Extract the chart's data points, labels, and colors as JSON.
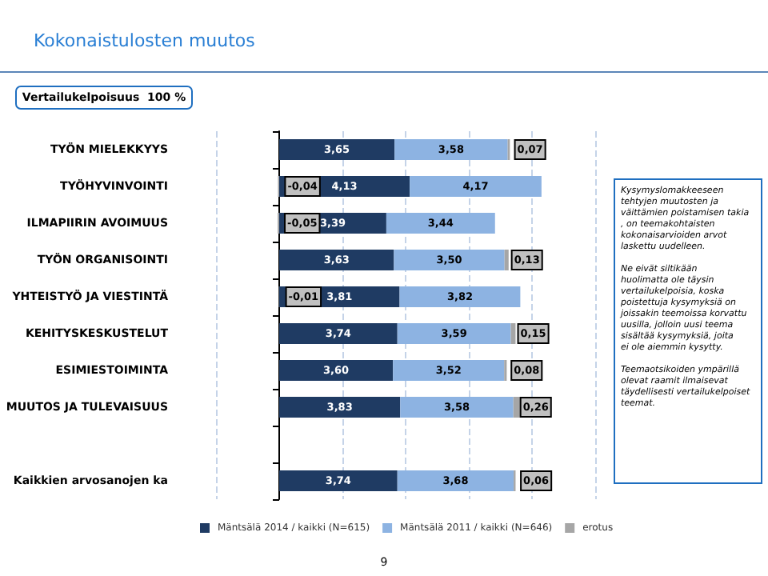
{
  "chart_data": {
    "type": "bar",
    "orientation": "horizontal",
    "stacked": true,
    "title": "Kokonaistulosten muutos",
    "categories": [
      "TYÖN MIELEKKYYS",
      "TYÖHYVINVOINTI",
      "ILMAPIIRIN AVOIMUUS",
      "TYÖN ORGANISOINTI",
      "YHTEISTYÖ JA VIESTINTÄ",
      "KEHITYSKESKUSTELUT",
      "ESIMIESTOIMINTA",
      "MUUTOS JA TULEVAISUUS",
      null,
      "Kaikkien arvosanojen ka"
    ],
    "series": [
      {
        "name": "Mäntsälä 2014 / kaikki (N=615)",
        "color": "#1f3b63",
        "values": [
          3.65,
          4.13,
          3.39,
          3.63,
          3.81,
          3.74,
          3.6,
          3.83,
          null,
          3.74
        ],
        "value_labels": [
          "3,65",
          "4,13",
          "3,39",
          "3,63",
          "3,81",
          "3,74",
          "3,60",
          "3,83",
          null,
          "3,74"
        ]
      },
      {
        "name": "Mäntsälä 2011 / kaikki (N=646)",
        "color": "#8db3e2",
        "values": [
          3.58,
          4.17,
          3.44,
          3.5,
          3.82,
          3.59,
          3.52,
          3.58,
          null,
          3.68
        ],
        "value_labels": [
          "3,58",
          "4,17",
          "3,44",
          "3,50",
          "3,82",
          "3,59",
          "3,52",
          "3,58",
          null,
          "3,68"
        ]
      },
      {
        "name": "erotus",
        "color": "#a6a6a6",
        "values": [
          0.07,
          -0.04,
          -0.05,
          0.13,
          -0.01,
          0.15,
          0.08,
          0.26,
          null,
          0.06
        ],
        "value_labels": [
          "0,07",
          "-0,04",
          "-0,05",
          "0,13",
          "-0,01",
          "0,15",
          "0,08",
          "0,26",
          null,
          "0,06"
        ]
      }
    ],
    "tick_labels": "y",
    "grid": "x",
    "legend": "bottom",
    "annotations": [
      "Vertailukelpoisuus  100 %",
      "Kysymyslomakkeeseen tehtyjen muutosten ja väittämien poistamisen takia, on teemakohtaisten kokonaisarvioiden arvot laskettu uudelleen.",
      "Ne eivät siltikään huolimatta ole täysin vertailukelpoisia, koska poistettuja kysymyksiä on joissakin teemoissa korvattu uusilla, jolloin uusi teema sisältää kysymyksiä, joita ei ole aiemmin kysytty.",
      "Teemaotsikoiden ympärillä olevat raamit ilmaisevat täydellisesti vertailukelpoiset teemat.",
      "9"
    ]
  }
}
